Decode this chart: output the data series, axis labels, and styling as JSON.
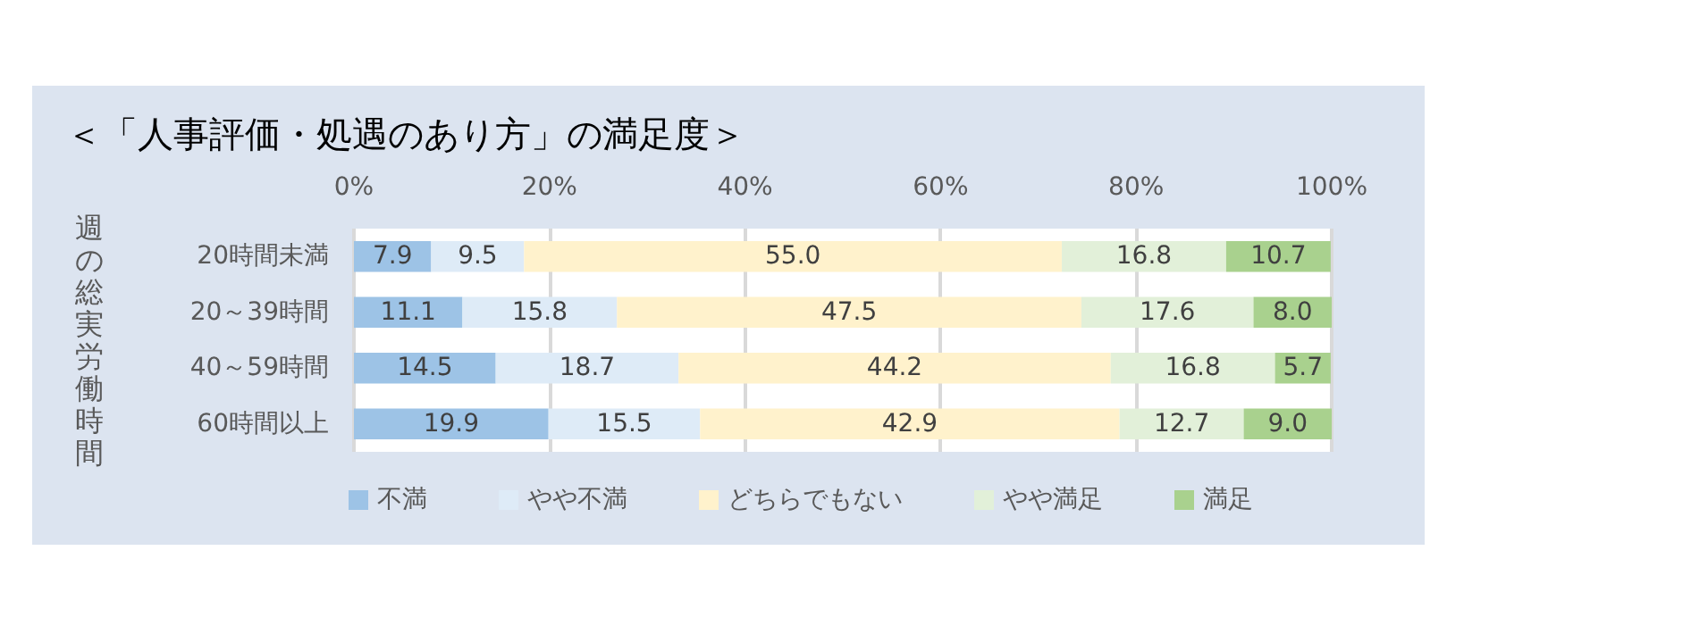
{
  "chart_data": {
    "type": "bar",
    "orientation": "horizontal",
    "stacked": true,
    "title": "＜「人事評価・処遇のあり方」の満足度＞",
    "ylabel": "週の総実労働時間",
    "categories": [
      "20時間未満",
      "20～39時間",
      "40～59時間",
      "60時間以上"
    ],
    "series": [
      {
        "name": "不満",
        "color": "#9dc3e6",
        "values": [
          7.9,
          11.1,
          14.5,
          19.9
        ],
        "value_labels": [
          "7.9",
          "11.1",
          "14.5",
          "19.9"
        ]
      },
      {
        "name": "やや不満",
        "color": "#deebf7",
        "values": [
          9.5,
          15.8,
          18.7,
          15.5
        ],
        "value_labels": [
          "9.5",
          "15.8",
          "18.7",
          "15.5"
        ]
      },
      {
        "name": "どちらでもない",
        "color": "#fff2cc",
        "values": [
          55,
          47.5,
          44.2,
          42.9
        ],
        "value_labels": [
          "55.0",
          "47.5",
          "44.2",
          "42.9"
        ]
      },
      {
        "name": "やや満足",
        "color": "#e2f0d9",
        "values": [
          16.8,
          17.6,
          16.8,
          12.7
        ],
        "value_labels": [
          "16.8",
          "17.6",
          "16.8",
          "12.7"
        ]
      },
      {
        "name": "満足",
        "color": "#a9d18e",
        "values": [
          10.7,
          8,
          5.7,
          9
        ],
        "value_labels": [
          "10.7",
          "8.0",
          "5.7",
          "9.0"
        ]
      }
    ],
    "xlim": [
      0,
      100
    ],
    "xticks": [
      {
        "value": 0,
        "label": "0%"
      },
      {
        "value": 20,
        "label": "20%"
      },
      {
        "value": 40,
        "label": "40%"
      },
      {
        "value": 60,
        "label": "60%"
      },
      {
        "value": 80,
        "label": "80%"
      },
      {
        "value": 100,
        "label": "100%"
      }
    ],
    "grid": "x",
    "legend": "bottom"
  }
}
